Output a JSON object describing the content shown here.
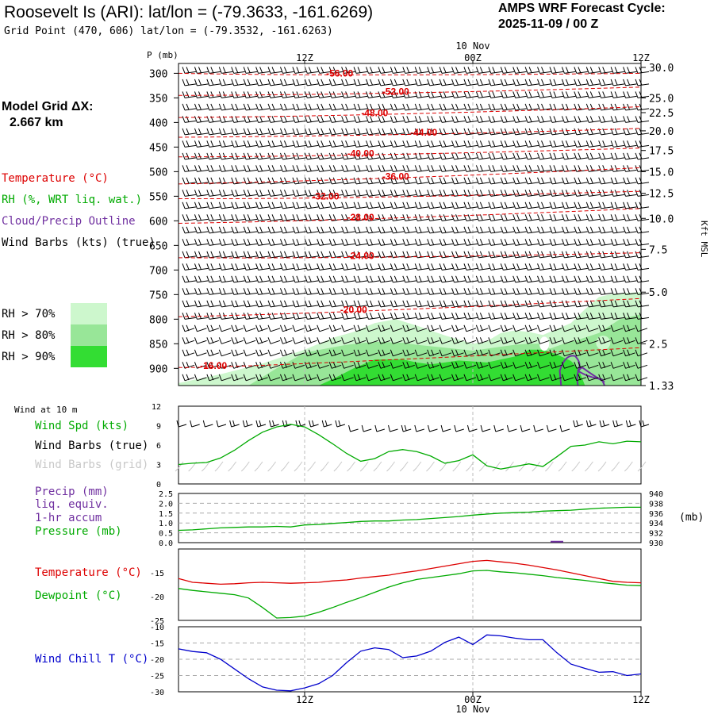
{
  "header": {
    "title": "Roosevelt Is (ARI):  lat/lon = (-79.3633, -161.6269)",
    "grid_point": "Grid Point (470, 606) lat/lon = (-79.3532, -161.6263)",
    "cycle_line1": "AMPS WRF Forecast Cycle:",
    "cycle_line2": "2025-11-09 / 00  Z"
  },
  "left_panel": {
    "model_grid_label": "Model Grid ΔX:",
    "model_grid_value": "2.667 km",
    "legend_temperature": "Temperature (°C)",
    "legend_rh": "RH (%, WRT liq. wat.)",
    "legend_cloud": "Cloud/Precip Outline",
    "legend_wind": "Wind Barbs (kts) (true)",
    "rh_70": "RH > 70%",
    "rh_80": "RH > 80%",
    "rh_90": "RH > 90%"
  },
  "colors": {
    "temperature": "#dd0000",
    "rh": "#00aa00",
    "cloud": "#7030a0",
    "rh70": "#cdf7cd",
    "rh80": "#98e698",
    "rh90": "#33dd33",
    "windchill": "#0000cc",
    "grid_barbs": "#c8c8c8"
  },
  "chart_data": [
    {
      "id": "profile",
      "type": "heatmap",
      "title": "Time-height cross section",
      "ylabel": "P (mb)",
      "ylabel_right": "Kft MSL",
      "date_label": "10 Nov",
      "x_ticks": [
        {
          "hour": 12,
          "label": "12Z"
        },
        {
          "hour": 24,
          "label": "00Z"
        },
        {
          "hour": 36,
          "label": "12Z"
        }
      ],
      "xlim_hours": [
        3,
        36
      ],
      "ylim_mb": [
        280,
        935
      ],
      "y_ticks_mb": [
        300,
        350,
        400,
        450,
        500,
        550,
        600,
        650,
        700,
        750,
        800,
        850,
        900
      ],
      "right_ticks": [
        {
          "mb": 288,
          "label": "30.0"
        },
        {
          "mb": 350,
          "label": "25.0"
        },
        {
          "mb": 380,
          "label": "22.5"
        },
        {
          "mb": 417,
          "label": "20.0"
        },
        {
          "mb": 457,
          "label": "17.5"
        },
        {
          "mb": 500,
          "label": "15.0"
        },
        {
          "mb": 544,
          "label": "12.5"
        },
        {
          "mb": 595,
          "label": "10.0"
        },
        {
          "mb": 658,
          "label": "7.5"
        },
        {
          "mb": 745,
          "label": "5.0"
        },
        {
          "mb": 850,
          "label": "2.5"
        },
        {
          "mb": 935,
          "label": "1.33"
        }
      ],
      "temperature_contours": [
        {
          "label": "-56.00",
          "mb_start": 300,
          "mb_end": 300,
          "label_hour": 14.5
        },
        {
          "label": "-52.00",
          "mb_start": 345,
          "mb_end": 328,
          "label_hour": 18.5
        },
        {
          "label": "-48.00",
          "mb_start": 390,
          "mb_end": 368,
          "label_hour": 17
        },
        {
          "label": "-44.00",
          "mb_start": 430,
          "mb_end": 412,
          "label_hour": 20.5
        },
        {
          "label": "-40.00",
          "mb_start": 470,
          "mb_end": 452,
          "label_hour": 16
        },
        {
          "label": "-36.00",
          "mb_start": 525,
          "mb_end": 492,
          "label_hour": 18.5
        },
        {
          "label": "-32.00",
          "mb_start": 555,
          "mb_end": 540,
          "label_hour": 13.5
        },
        {
          "label": "-28.00",
          "mb_start": 605,
          "mb_end": 575,
          "label_hour": 16
        },
        {
          "label": "-24.00",
          "mb_start": 675,
          "mb_end": 665,
          "label_hour": 16
        },
        {
          "label": "-20.00",
          "mb_start": 795,
          "mb_end": 758,
          "label_hour": 15.5
        },
        {
          "label": "-16.00",
          "mb_start": 898,
          "mb_end": 858,
          "label_hour": 5.5
        }
      ],
      "rh_levels": [
        ">70",
        ">80",
        ">90"
      ]
    },
    {
      "id": "wind10m",
      "type": "line",
      "title": "Wind at 10 m",
      "labels": [
        "Wind Spd (kts)",
        "Wind Barbs (true)",
        "Wind Barbs (grid)"
      ],
      "ylim": [
        0,
        12
      ],
      "y_ticks": [
        0,
        3,
        6,
        9,
        12
      ],
      "x_hours": [
        3,
        4,
        5,
        6,
        7,
        8,
        9,
        10,
        11,
        12,
        13,
        14,
        15,
        16,
        17,
        18,
        19,
        20,
        21,
        22,
        23,
        24,
        25,
        26,
        27,
        28,
        29,
        30,
        31,
        32,
        33,
        34,
        35,
        36
      ],
      "wind_speed_kts": [
        3.0,
        3.2,
        3.3,
        4.0,
        5.2,
        6.7,
        8.0,
        8.8,
        9.2,
        8.8,
        7.6,
        6.2,
        4.7,
        3.5,
        3.9,
        5.0,
        5.3,
        5.0,
        4.3,
        3.2,
        3.6,
        4.5,
        2.8,
        2.3,
        2.7,
        3.1,
        2.7,
        4.2,
        5.8,
        6.0,
        6.5,
        6.2,
        6.6,
        6.5
      ]
    },
    {
      "id": "precip_pressure",
      "type": "line",
      "labels": [
        "Precip (mm)",
        "liq. equiv.",
        "1-hr accum",
        "Pressure (mb)"
      ],
      "ylim_precip": [
        0,
        2.5
      ],
      "y_ticks_precip": [
        "0.0",
        "0.5",
        "1.0",
        "1.5",
        "2.0",
        "2.5"
      ],
      "ylim_pressure": [
        930,
        940
      ],
      "y_ticks_pressure": [
        "930",
        "932",
        "934",
        "936",
        "938",
        "940"
      ],
      "right_unit": "(mb)",
      "x_hours": [
        3,
        4,
        5,
        6,
        7,
        8,
        9,
        10,
        11,
        12,
        13,
        14,
        15,
        16,
        17,
        18,
        19,
        20,
        21,
        22,
        23,
        24,
        25,
        26,
        27,
        28,
        29,
        30,
        31,
        32,
        33,
        34,
        35,
        36
      ],
      "pressure_mb": [
        932.5,
        932.6,
        932.8,
        933.0,
        933.1,
        933.2,
        933.2,
        933.3,
        933.2,
        933.6,
        933.7,
        933.9,
        934.1,
        934.3,
        934.4,
        934.4,
        934.6,
        934.7,
        934.9,
        935.1,
        935.3,
        935.6,
        935.8,
        936.0,
        936.1,
        936.2,
        936.4,
        936.5,
        936.6,
        936.8,
        937.0,
        937.1,
        937.2,
        937.2
      ],
      "precip_mm": [
        0,
        0,
        0,
        0,
        0,
        0,
        0,
        0,
        0,
        0,
        0,
        0,
        0,
        0,
        0,
        0,
        0,
        0,
        0,
        0,
        0,
        0,
        0,
        0,
        0,
        0,
        0,
        0.05,
        0,
        0,
        0,
        0,
        0,
        0
      ]
    },
    {
      "id": "temp_dew",
      "type": "line",
      "labels": [
        "Temperature (°C)",
        "Dewpoint (°C)"
      ],
      "ylim": [
        -25,
        -10
      ],
      "y_ticks": [
        -25,
        -20,
        -15
      ],
      "x_hours": [
        3,
        4,
        5,
        6,
        7,
        8,
        9,
        10,
        11,
        12,
        13,
        14,
        15,
        16,
        17,
        18,
        19,
        20,
        21,
        22,
        23,
        24,
        25,
        26,
        27,
        28,
        29,
        30,
        31,
        32,
        33,
        34,
        35,
        36
      ],
      "temperature_c": [
        -16.2,
        -17.0,
        -17.2,
        -17.4,
        -17.3,
        -17.1,
        -17.0,
        -17.1,
        -17.2,
        -17.1,
        -17.0,
        -16.7,
        -16.5,
        -16.1,
        -15.8,
        -15.5,
        -15.0,
        -14.6,
        -14.1,
        -13.6,
        -13.1,
        -12.6,
        -12.4,
        -12.7,
        -13.0,
        -13.4,
        -13.9,
        -14.4,
        -15.0,
        -15.6,
        -16.2,
        -16.8,
        -17.0,
        -17.1
      ],
      "dewpoint_c": [
        -18.3,
        -18.7,
        -19.0,
        -19.3,
        -19.6,
        -20.3,
        -22.3,
        -24.5,
        -24.4,
        -24.1,
        -23.3,
        -22.3,
        -21.2,
        -20.2,
        -19.1,
        -18.0,
        -17.1,
        -16.4,
        -16.0,
        -15.6,
        -15.2,
        -14.6,
        -14.5,
        -14.8,
        -15.0,
        -15.3,
        -15.6,
        -16.0,
        -16.3,
        -16.6,
        -17.0,
        -17.3,
        -17.6,
        -17.7
      ]
    },
    {
      "id": "windchill",
      "type": "line",
      "labels": [
        "Wind Chill T (°C)"
      ],
      "ylim": [
        -30,
        -10
      ],
      "y_ticks": [
        -30,
        -25,
        -20,
        -15,
        -10
      ],
      "x_hours": [
        3,
        4,
        5,
        6,
        7,
        8,
        9,
        10,
        11,
        12,
        13,
        14,
        15,
        16,
        17,
        18,
        19,
        20,
        21,
        22,
        23,
        24,
        25,
        26,
        27,
        28,
        29,
        30,
        31,
        32,
        33,
        34,
        35,
        36
      ],
      "windchill_c": [
        -16.8,
        -17.6,
        -18.0,
        -20.0,
        -23.0,
        -26.0,
        -28.5,
        -29.5,
        -29.7,
        -28.8,
        -27.5,
        -25.0,
        -21.0,
        -17.5,
        -16.5,
        -17.0,
        -19.5,
        -19.0,
        -17.5,
        -14.8,
        -13.2,
        -15.5,
        -12.5,
        -12.8,
        -13.5,
        -14.0,
        -14.0,
        -18.0,
        -21.5,
        -22.8,
        -24.0,
        -23.8,
        -25.0,
        -24.5
      ]
    }
  ],
  "bottom_axis": {
    "tick_12z": "12Z",
    "tick_00z": "00Z",
    "tick_12z_end": "12Z",
    "date": "10 Nov"
  }
}
